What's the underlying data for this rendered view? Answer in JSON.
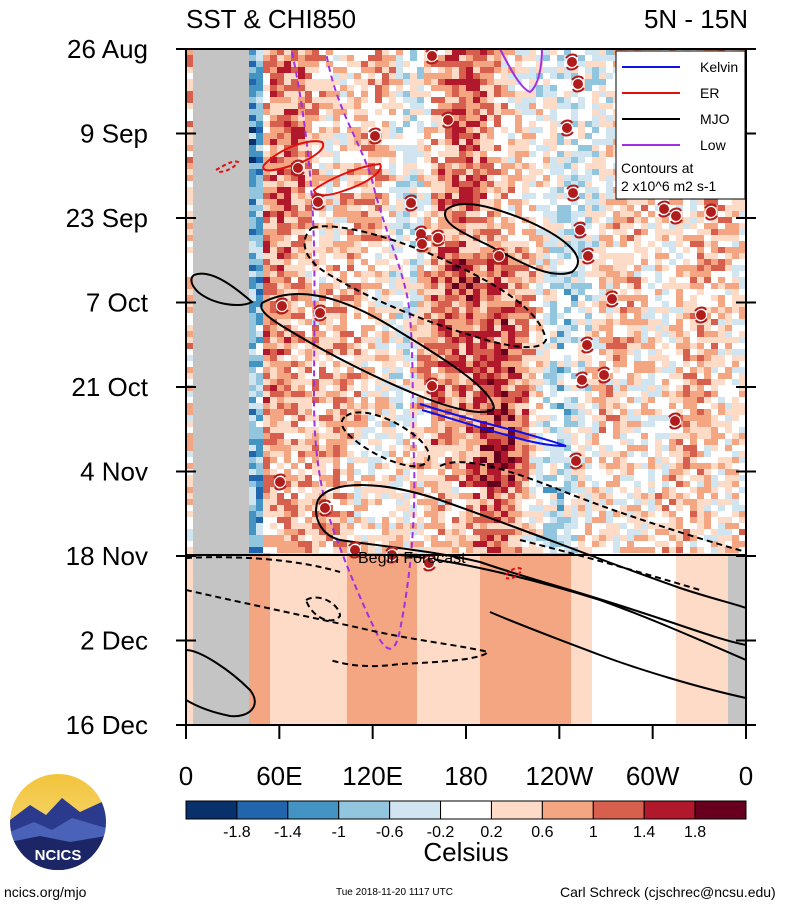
{
  "title_left": "SST & CHI850",
  "title_right": "5N - 15N",
  "colors": {
    "kelvin": "#1010e8",
    "er": "#e01010",
    "mjo": "#000000",
    "low": "#a030e0",
    "land_mask": "#c4c4c4",
    "storm_marker": "#b01c1c"
  },
  "legend": {
    "items": [
      {
        "label": "Kelvin",
        "color": "#1010e8",
        "style": "solid"
      },
      {
        "label": "ER",
        "color": "#e01010",
        "style": "solid"
      },
      {
        "label": "MJO",
        "color": "#000000",
        "style": "solid"
      },
      {
        "label": "Low",
        "color": "#a030e0",
        "style": "solid"
      }
    ],
    "note_line1": "Contours at",
    "note_line2": "2 x10^6 m2 s-1"
  },
  "forecast_label": "Begin Forecast",
  "colorbar": {
    "unit": "Celsius",
    "tick_labels": [
      "-1.8",
      "-1.4",
      "-1",
      "-0.6",
      "-0.2",
      "0.2",
      "0.6",
      "1",
      "1.4",
      "1.8"
    ],
    "bins": [
      "#08306b",
      "#2166ac",
      "#4393c3",
      "#92c5de",
      "#d1e5f0",
      "#ffffff",
      "#fddbc7",
      "#f4a582",
      "#d6604d",
      "#b2182b",
      "#67001f"
    ]
  },
  "chart_data": {
    "type": "heatmap",
    "title": "SST & CHI850",
    "subtitle": "5N - 15N",
    "xlabel": "",
    "ylabel": "",
    "x_ticks": [
      "0",
      "60E",
      "120E",
      "180",
      "120W",
      "60W",
      "0"
    ],
    "x_range_deg_east": [
      0,
      360
    ],
    "y_ticks": [
      "26 Aug",
      "9 Sep",
      "23 Sep",
      "7 Oct",
      "21 Oct",
      "4 Nov",
      "18 Nov",
      "2 Dec",
      "16 Dec"
    ],
    "y_range": [
      "2018-08-26",
      "2018-12-16"
    ],
    "forecast_start": "2018-11-18",
    "colorbar_unit": "Celsius",
    "legend_placement": "top-right"
  },
  "footer": {
    "logo_text": "NCICS",
    "url": "ncics.org/mjo",
    "timestamp": "Tue 2018-11-20 1117 UTC",
    "author": "Carl Schreck (cjschrec@ncsu.edu)"
  }
}
